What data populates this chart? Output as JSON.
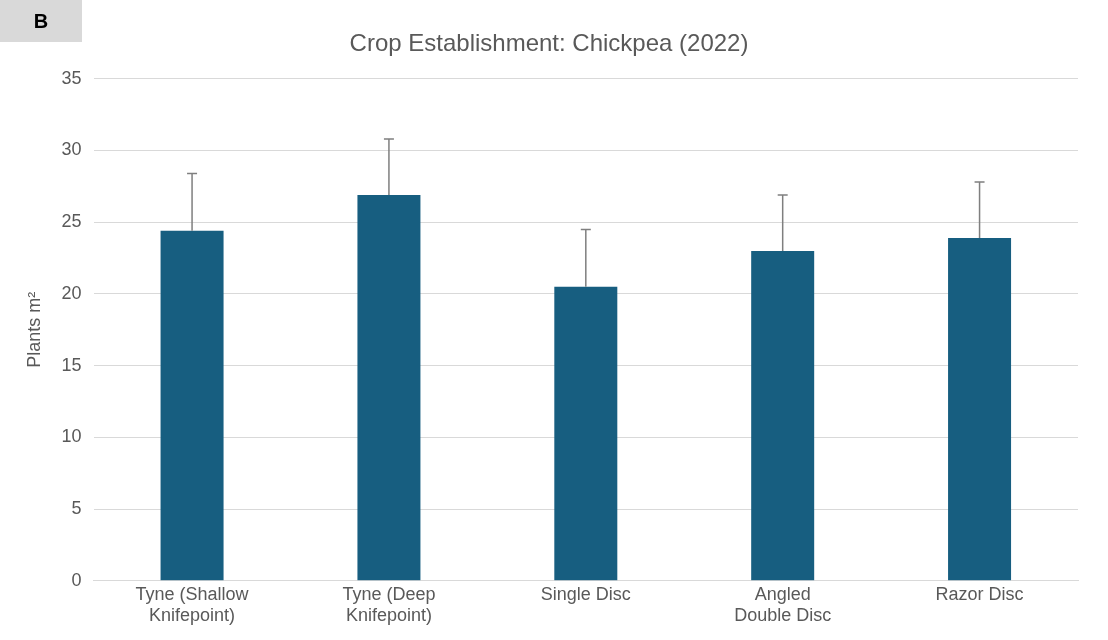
{
  "chart_data": {
    "type": "bar",
    "title": "Crop Establishment: Chickpea (2022)",
    "ylabel": "Plants m²",
    "categories": [
      [
        "Tyne (Shallow",
        "Knifepoint)"
      ],
      [
        "Tyne (Deep",
        "Knifepoint)"
      ],
      [
        "Single Disc"
      ],
      [
        "Angled",
        "Double Disc"
      ],
      [
        "Razor Disc"
      ]
    ],
    "values": [
      24.4,
      26.9,
      20.5,
      23.0,
      23.9
    ],
    "errors": [
      [
        24.4,
        28.4
      ],
      [
        26.9,
        30.8
      ],
      [
        20.5,
        24.5
      ],
      [
        23.0,
        26.9
      ],
      [
        23.9,
        27.8
      ]
    ],
    "color": "#175e80",
    "ylim": [
      0,
      35
    ],
    "yticks": [
      0,
      5,
      10,
      15,
      20,
      25,
      30,
      35
    ],
    "grid": "y",
    "annotations": [
      "B"
    ]
  }
}
